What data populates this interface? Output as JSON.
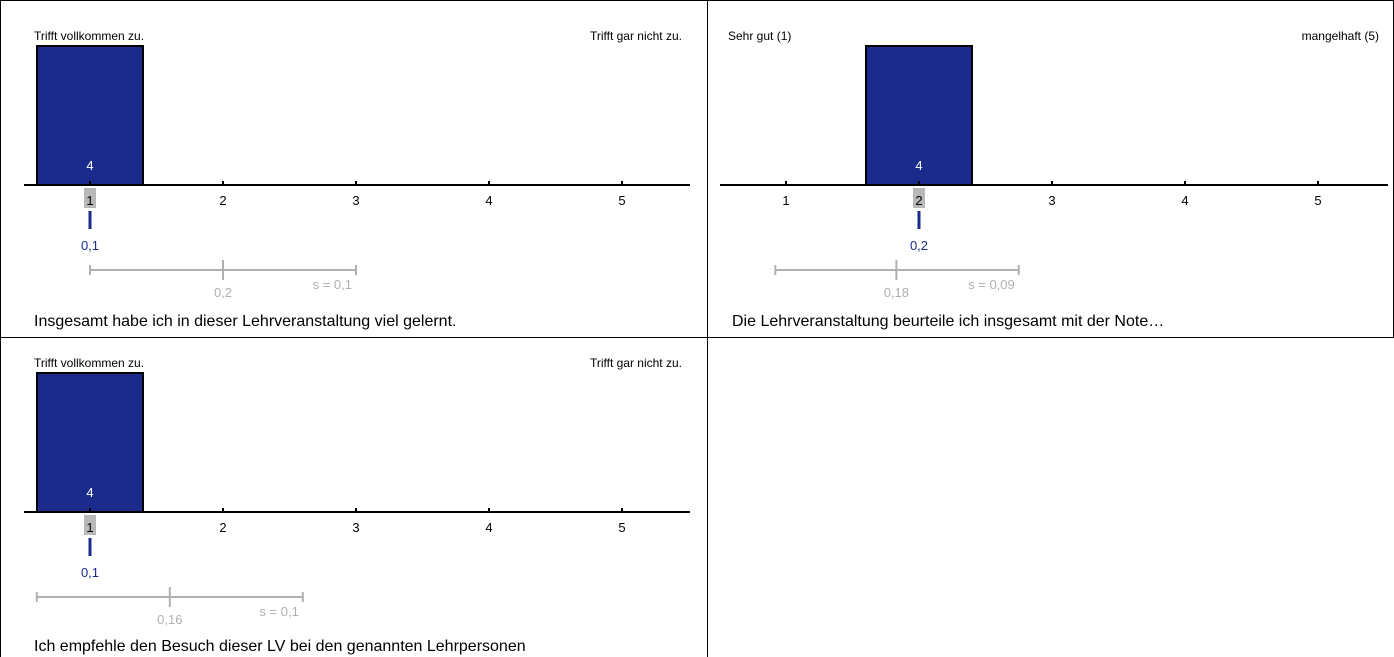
{
  "colors": {
    "bar": "#1a2b8c",
    "bar_outline": "#000000",
    "mean": "#1a2b8c",
    "spread": "#b0b0b0",
    "axis": "#000000",
    "highlight": "#b8b8b8",
    "bar_label": "#ffffff"
  },
  "chart_data": [
    {
      "type": "bar",
      "left_label": "Trifft vollkommen zu.",
      "right_label": "Trifft gar nicht zu.",
      "categories": [
        "1",
        "2",
        "3",
        "4",
        "5"
      ],
      "values": [
        4,
        0,
        0,
        0,
        0
      ],
      "ymax": 4,
      "highlight_category": "1",
      "mean_value": 1,
      "mean_label": "0,1",
      "spread": {
        "low": 1,
        "mid": 2,
        "high": 3,
        "mid_label": "0,2",
        "s_label": "s = 0,1"
      },
      "question": "Insgesamt habe ich in dieser Lehrveranstaltung viel gelernt."
    },
    {
      "type": "bar",
      "left_label": "Sehr gut (1)",
      "right_label": "mangelhaft (5)",
      "categories": [
        "1",
        "2",
        "3",
        "4",
        "5"
      ],
      "values": [
        0,
        4,
        0,
        0,
        0
      ],
      "ymax": 4,
      "highlight_category": "2",
      "mean_value": 2,
      "mean_label": "0,2",
      "spread": {
        "low": 0.92,
        "mid": 1.83,
        "high": 2.75,
        "mid_label": "0,18",
        "s_label": "s = 0,09"
      },
      "question": "Die Lehrveranstaltung beurteile ich insgesamt mit der Note…"
    },
    {
      "type": "bar",
      "left_label": "Trifft vollkommen zu.",
      "right_label": "Trifft gar nicht zu.",
      "categories": [
        "1",
        "2",
        "3",
        "4",
        "5"
      ],
      "values": [
        4,
        0,
        0,
        0,
        0
      ],
      "ymax": 4,
      "highlight_category": "1",
      "mean_value": 1,
      "mean_label": "0,1",
      "spread": {
        "low": 0.6,
        "mid": 1.6,
        "high": 2.6,
        "mid_label": "0,16",
        "s_label": "s = 0,1"
      },
      "question": "Ich empfehle den Besuch dieser LV bei den genannten Lehrpersonen"
    }
  ]
}
